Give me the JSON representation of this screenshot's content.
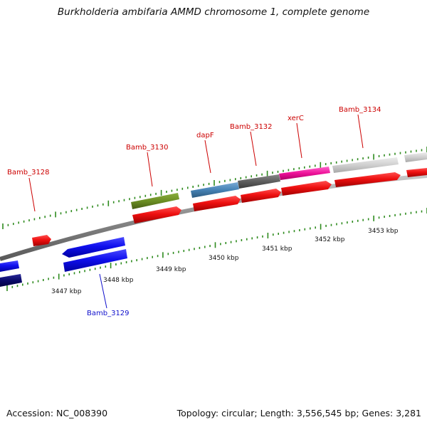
{
  "header": {
    "title": "Burkholderia ambifaria AMMD chromosome 1, complete genome"
  },
  "footer": {
    "accession": "Accession: NC_008390",
    "summary": "Topology: circular; Length: 3,556,545 bp; Genes: 3,281"
  },
  "colors": {
    "backbone": "#8a8a8a",
    "tick": "#2e8b1e",
    "cds": "#ee1111",
    "label_forward": "#cc0000",
    "label_reverse": "#1010cc"
  },
  "scale": {
    "ticks": [
      {
        "label": "3447 kbp"
      },
      {
        "label": "3448 kbp"
      },
      {
        "label": "3449 kbp"
      },
      {
        "label": "3450 kbp"
      },
      {
        "label": "3451 kbp"
      },
      {
        "label": "3452 kbp"
      },
      {
        "label": "3453 kbp"
      }
    ]
  },
  "genes": [
    {
      "name": "Bamb_3128",
      "strand": "forward",
      "color": "red"
    },
    {
      "name": "Bamb_3129",
      "strand": "reverse",
      "color": "blue"
    },
    {
      "name": "Bamb_3130",
      "strand": "forward",
      "color": "olive-green"
    },
    {
      "name": "dapF",
      "strand": "forward",
      "color": "steel-blue"
    },
    {
      "name": "Bamb_3132",
      "strand": "forward",
      "color": "dark-gray"
    },
    {
      "name": "xerC",
      "strand": "forward",
      "color": "magenta"
    },
    {
      "name": "Bamb_3134",
      "strand": "forward",
      "color": "light-gray"
    }
  ]
}
